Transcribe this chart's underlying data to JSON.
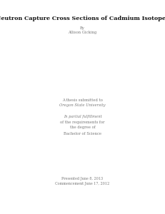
{
  "title": "Neutron Capture Cross Sections of Cadmium Isotopes",
  "by_label": "By",
  "author": "Allison Gicking",
  "thesis_line1": "A thesis submitted to",
  "thesis_line2": "Oregon State University",
  "fulfillment_line1": "In partial fulfillment",
  "fulfillment_line2": "of the requirements for",
  "fulfillment_line3": "the degree of",
  "degree": "Bachelor of Science",
  "presented": "Presented June 8, 2013",
  "commencement": "Commencement June 17, 2012",
  "background_color": "#ffffff",
  "text_color": "#111111",
  "faint_text_color": "#777777",
  "title_fontsize": 5.8,
  "body_fontsize": 3.8,
  "small_fontsize": 3.5
}
